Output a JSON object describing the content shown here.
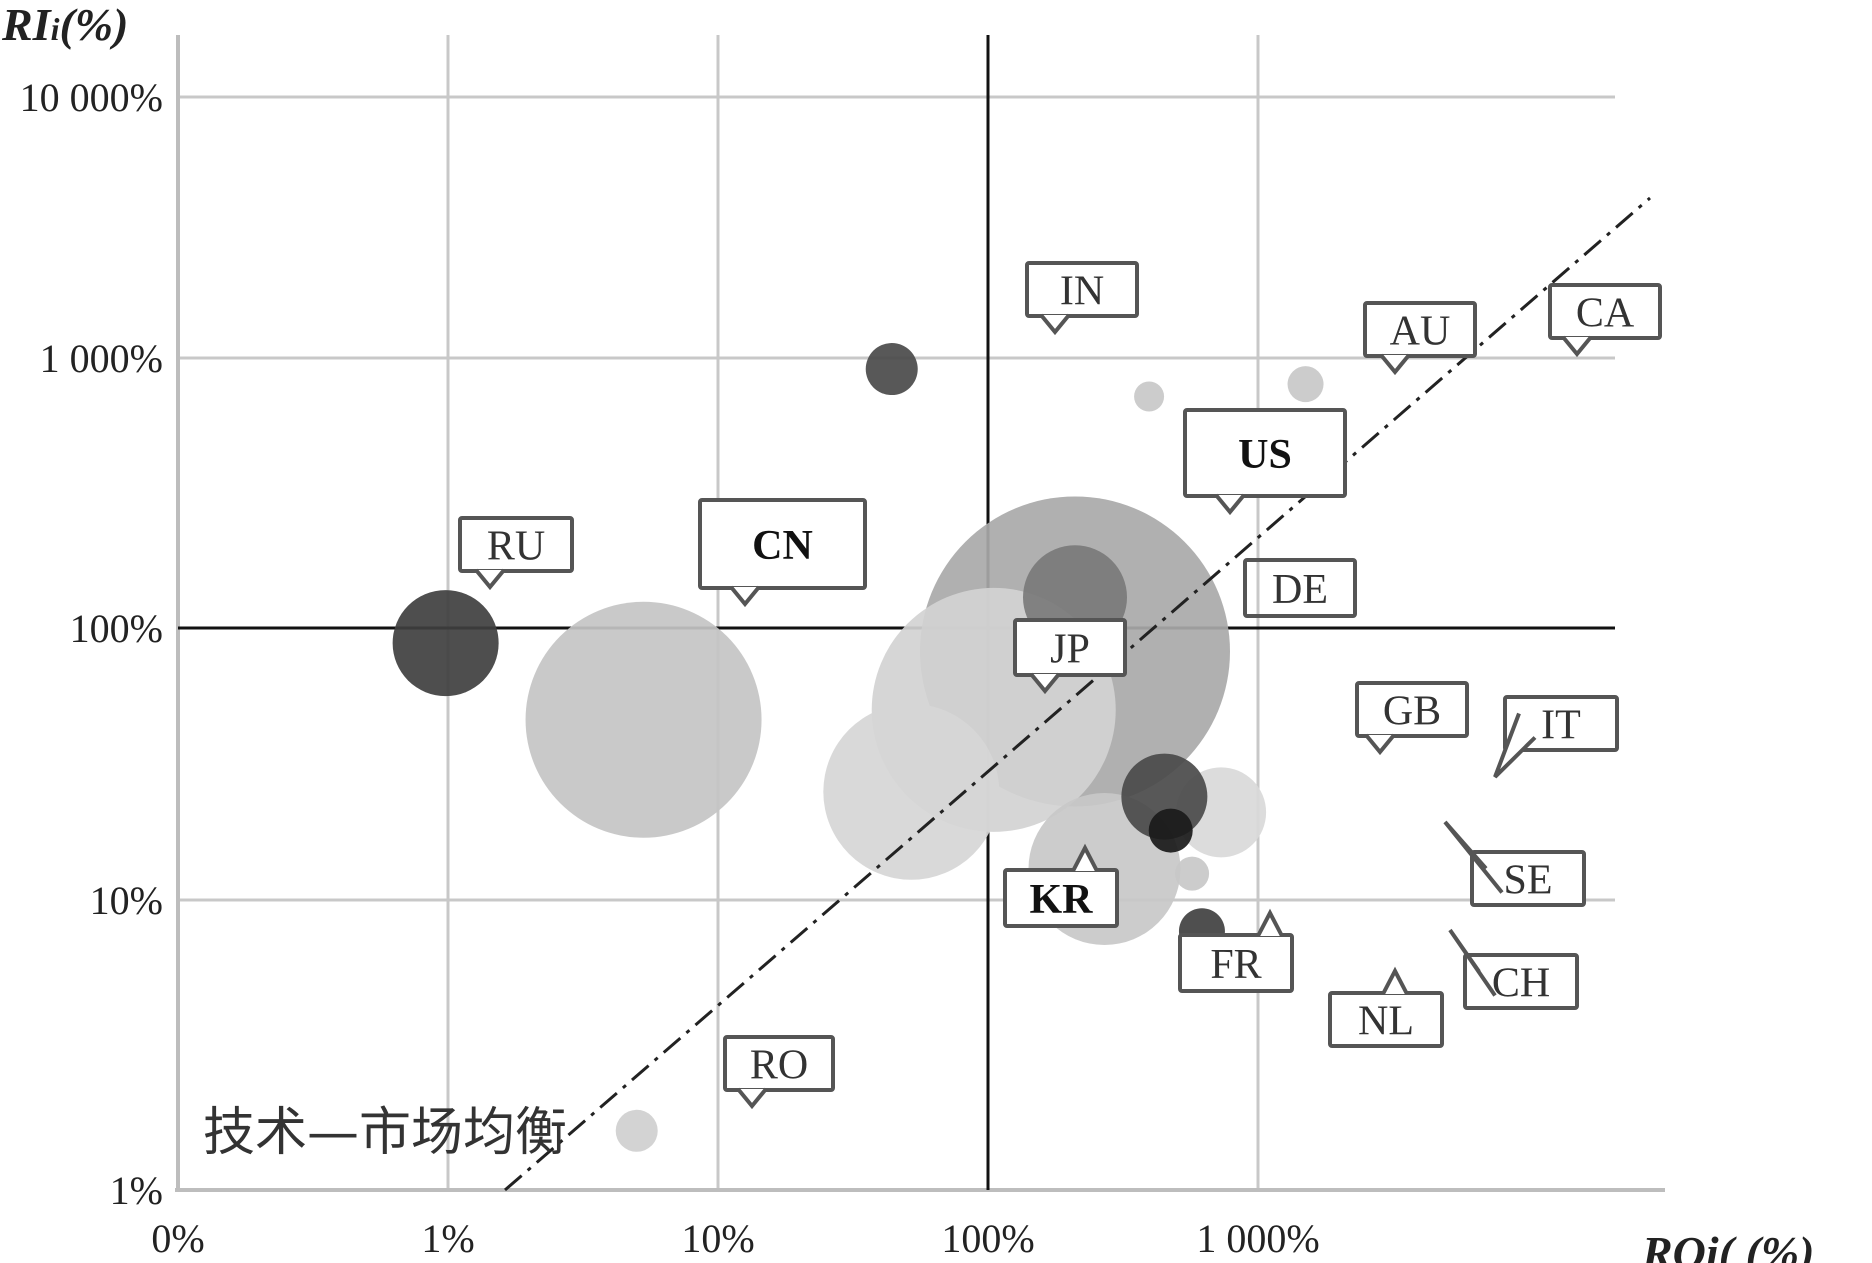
{
  "chart_data": {
    "type": "bubble-scatter",
    "xlabel": "ROi( (%)",
    "ylabel_main": "RI",
    "ylabel_sub": "i",
    "ylabel_suffix": "(%)",
    "x_scale": "log",
    "y_scale": "log",
    "x_ticks": [
      {
        "value": 0.1,
        "label": "0%"
      },
      {
        "value": 1,
        "label": "1%"
      },
      {
        "value": 10,
        "label": "10%"
      },
      {
        "value": 100,
        "label": "100%"
      },
      {
        "value": 1000,
        "label": "1 000%"
      }
    ],
    "y_ticks": [
      {
        "value": 1,
        "label": "1%"
      },
      {
        "value": 10,
        "label": "10%"
      },
      {
        "value": 100,
        "label": "100%"
      },
      {
        "value": 1000,
        "label": "1 000%"
      },
      {
        "value": 10000,
        "label": "10 000%"
      }
    ],
    "reference_lines": {
      "x": 100,
      "y": 100
    },
    "diagonal_label": "技术—市场均衡",
    "grid": true,
    "points": [
      {
        "label": "US",
        "x": 210,
        "y": 82,
        "size": 155,
        "color": "#a9a9a9",
        "bold": true
      },
      {
        "label": "CN",
        "x": 5.3,
        "y": 46,
        "size": 118,
        "color": "#c4c4c4",
        "bold": true
      },
      {
        "label": "JP",
        "x": 105,
        "y": 50,
        "size": 122,
        "color": "#d2d2d2",
        "bold": false
      },
      {
        "label": "KR",
        "x": 52,
        "y": 25,
        "size": 88,
        "color": "#d6d6d6",
        "bold": true
      },
      {
        "label": "DE",
        "x": 210,
        "y": 130,
        "size": 52,
        "color": "#7a7a7a",
        "bold": false
      },
      {
        "label": "FR",
        "x": 270,
        "y": 13,
        "size": 76,
        "color": "#c8c8c8",
        "bold": false
      },
      {
        "label": "RU",
        "x": 0.98,
        "y": 88,
        "size": 53,
        "color": "#3f3f3f",
        "bold": false
      },
      {
        "label": "GB",
        "x": 450,
        "y": 24,
        "size": 43,
        "color": "#4a4a4a",
        "bold": false
      },
      {
        "label": "IT",
        "x": 730,
        "y": 21,
        "size": 45,
        "color": "#d9d9d9",
        "bold": false
      },
      {
        "label": "SE",
        "x": 475,
        "y": 18,
        "size": 22,
        "color": "#1a1a1a",
        "bold": false
      },
      {
        "label": "NL",
        "x": 570,
        "y": 12.5,
        "size": 17,
        "color": "#c8c8c8",
        "bold": false
      },
      {
        "label": "CH",
        "x": 620,
        "y": 7.8,
        "size": 23,
        "color": "#404040",
        "bold": false
      },
      {
        "label": "IN",
        "x": 44,
        "y": 910,
        "size": 26,
        "color": "#4a4a4a",
        "bold": false
      },
      {
        "label": "AU",
        "x": 395,
        "y": 720,
        "size": 15,
        "color": "#c8c8c8",
        "bold": false
      },
      {
        "label": "CA",
        "x": 1500,
        "y": 800,
        "size": 18,
        "color": "#c8c8c8",
        "bold": false
      },
      {
        "label": "RO",
        "x": 5,
        "y": 1.6,
        "size": 21,
        "color": "#cfcfcf",
        "bold": false
      }
    ]
  }
}
